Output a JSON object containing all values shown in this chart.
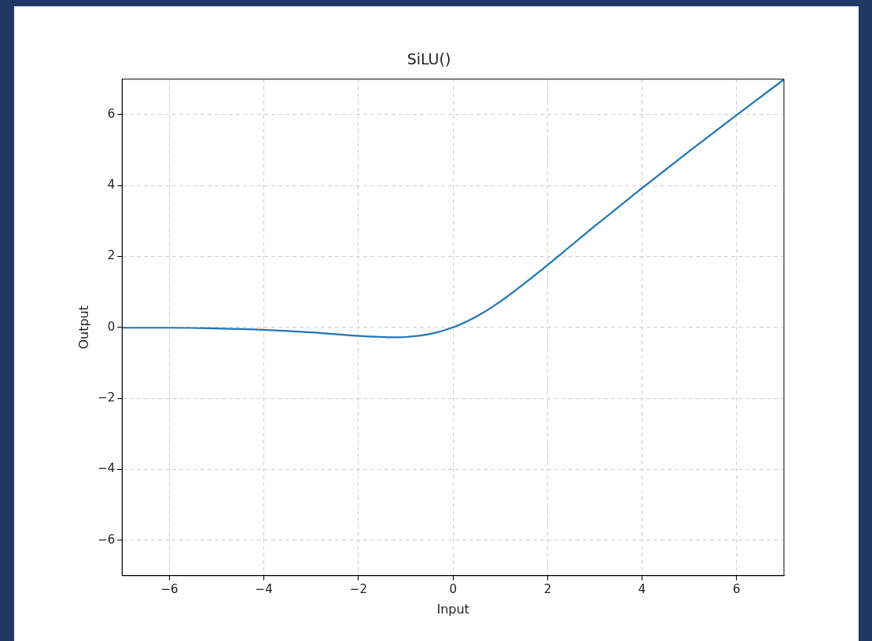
{
  "chart_data": {
    "type": "line",
    "title": "SiLU()",
    "xlabel": "Input",
    "ylabel": "Output",
    "x": [
      -7,
      -6,
      -5,
      -4,
      -3,
      -2.5,
      -2,
      -1.5,
      -1.25,
      -1,
      -0.5,
      0,
      0.5,
      1,
      1.5,
      2,
      2.5,
      3,
      4,
      5,
      6,
      7
    ],
    "series": [
      {
        "color": "#1f77b4",
        "values": [
          -0.01,
          -0.01,
          -0.03,
          -0.07,
          -0.14,
          -0.19,
          -0.24,
          -0.27,
          -0.28,
          -0.27,
          -0.19,
          0,
          0.31,
          0.73,
          1.23,
          1.76,
          2.31,
          2.86,
          3.93,
          4.97,
          5.99,
          6.99
        ]
      }
    ],
    "xlim": [
      -7,
      7
    ],
    "xticks": [
      {
        "value": -6,
        "label": "−6"
      },
      {
        "value": -4,
        "label": "−4"
      },
      {
        "value": -2,
        "label": "−2"
      },
      0,
      2,
      4,
      6
    ],
    "ylim": [
      -7,
      7
    ],
    "yticks": [
      {
        "value": -6,
        "label": "−6"
      },
      {
        "value": -4,
        "label": "−4"
      },
      {
        "value": -2,
        "label": "−2"
      },
      0,
      2,
      4,
      6
    ],
    "grid": true,
    "legend": false,
    "marker": "none",
    "line_style": "solid"
  }
}
